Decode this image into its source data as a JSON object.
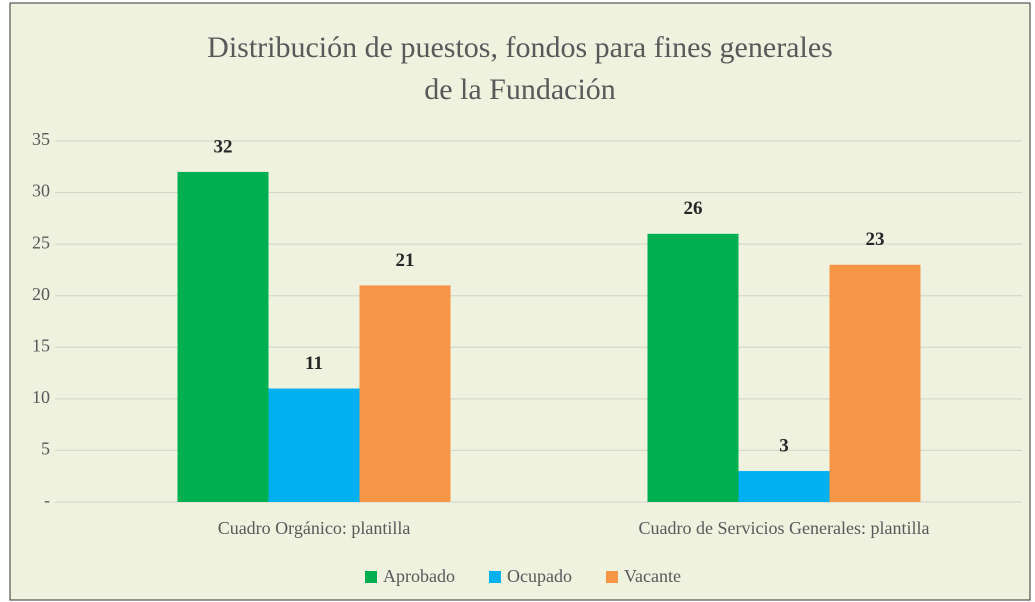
{
  "chart_data": {
    "type": "bar",
    "title": [
      "Distribución de puestos, fondos para fines generales",
      "de la Fundación"
    ],
    "categories": [
      "Cuadro Orgánico: plantilla",
      "Cuadro de Servicios Generales: plantilla"
    ],
    "series": [
      {
        "name": "Aprobado",
        "color": "#00b050",
        "values": [
          32,
          26
        ]
      },
      {
        "name": "Ocupado",
        "color": "#00b0f0",
        "values": [
          11,
          3
        ]
      },
      {
        "name": "Vacante",
        "color": "#f79646",
        "values": [
          21,
          23
        ]
      }
    ],
    "ylim": [
      0,
      35
    ],
    "yticks": [
      {
        "value": 0,
        "label": "-"
      },
      5,
      10,
      15,
      20,
      25,
      30,
      35
    ],
    "grid": true,
    "legend": "bottom"
  }
}
